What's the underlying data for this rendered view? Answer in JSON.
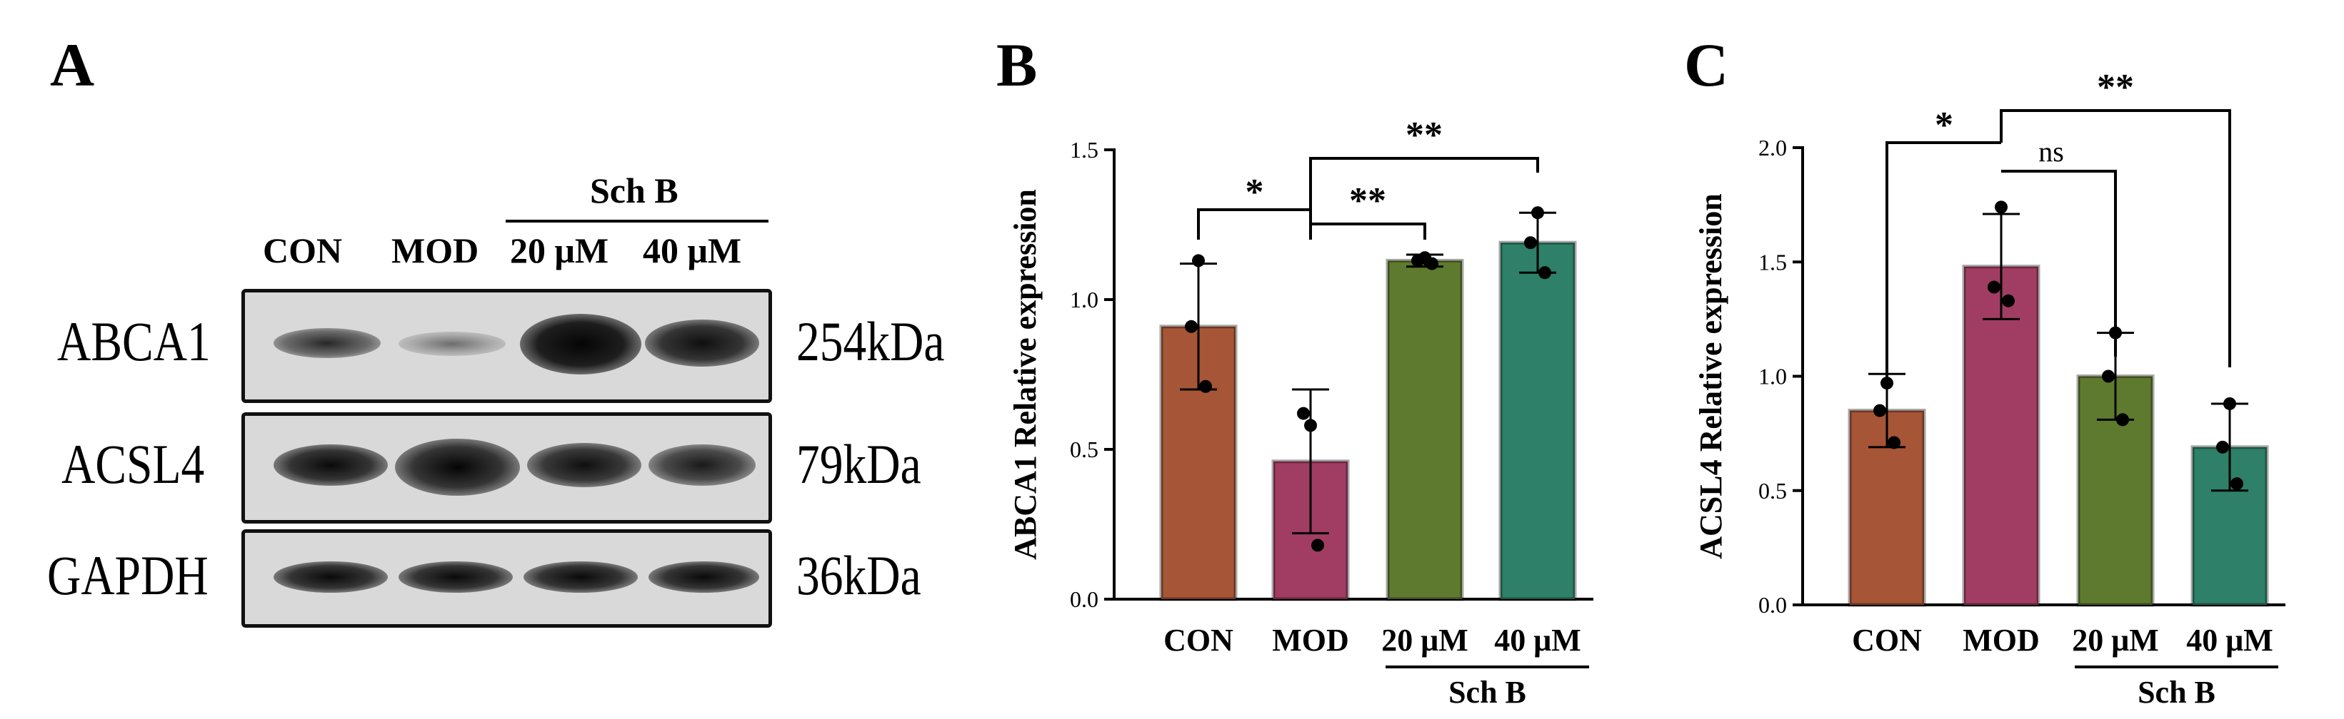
{
  "panels": {
    "a": "A",
    "b": "B",
    "c": "C"
  },
  "blot": {
    "group_label": "Sch B",
    "lanes": [
      "CON",
      "MOD",
      "20 μM",
      "40 μM"
    ],
    "rows": [
      {
        "protein": "ABCA1",
        "kda": "254kDa"
      },
      {
        "protein": "ACSL4",
        "kda": "79kDa"
      },
      {
        "protein": "GAPDH",
        "kda": "36kDa"
      }
    ]
  },
  "colors": {
    "con": "#A65537",
    "mod": "#A13D63",
    "sch20": "#5E7A2E",
    "sch40": "#2E8068"
  },
  "chart_data": [
    {
      "panel": "B",
      "type": "bar",
      "categories": [
        "CON",
        "MOD",
        "20 μM",
        "40 μM"
      ],
      "group_label": "Sch B",
      "ylabel": "ABCA1 Relative expression",
      "ylim": [
        0,
        1.5
      ],
      "yticks": [
        "0.0",
        "0.5",
        "1.0",
        "1.5"
      ],
      "ytick_values": [
        0,
        0.5,
        1.0,
        1.5
      ],
      "values": [
        0.91,
        0.46,
        1.13,
        1.19
      ],
      "errors": [
        0.21,
        0.24,
        0.02,
        0.1
      ],
      "points": [
        [
          1.13,
          0.91,
          0.71
        ],
        [
          0.58,
          0.62,
          0.18
        ],
        [
          1.14,
          1.13,
          1.12
        ],
        [
          1.29,
          1.19,
          1.09
        ]
      ],
      "significance": [
        {
          "from": 0,
          "to": 1,
          "label": "*"
        },
        {
          "from": 1,
          "to": 2,
          "label": "**"
        },
        {
          "from": 1,
          "to": 3,
          "label": "**"
        }
      ]
    },
    {
      "panel": "C",
      "type": "bar",
      "categories": [
        "CON",
        "MOD",
        "20 μM",
        "40 μM"
      ],
      "group_label": "Sch B",
      "ylabel": "ACSL4 Relative expression",
      "ylim": [
        0,
        2.0
      ],
      "yticks": [
        "0.0",
        "0.5",
        "1.0",
        "1.5",
        "2.0"
      ],
      "ytick_values": [
        0,
        0.5,
        1.0,
        1.5,
        2.0
      ],
      "values": [
        0.85,
        1.48,
        1.0,
        0.69
      ],
      "errors": [
        0.16,
        0.23,
        0.19,
        0.19
      ],
      "points": [
        [
          0.97,
          0.85,
          0.71
        ],
        [
          1.74,
          1.39,
          1.33
        ],
        [
          1.19,
          1.0,
          0.81
        ],
        [
          0.88,
          0.69,
          0.53
        ]
      ],
      "significance": [
        {
          "from": 0,
          "to": 1,
          "label": "*"
        },
        {
          "from": 1,
          "to": 2,
          "label": "ns"
        },
        {
          "from": 1,
          "to": 3,
          "label": "**"
        }
      ]
    }
  ]
}
